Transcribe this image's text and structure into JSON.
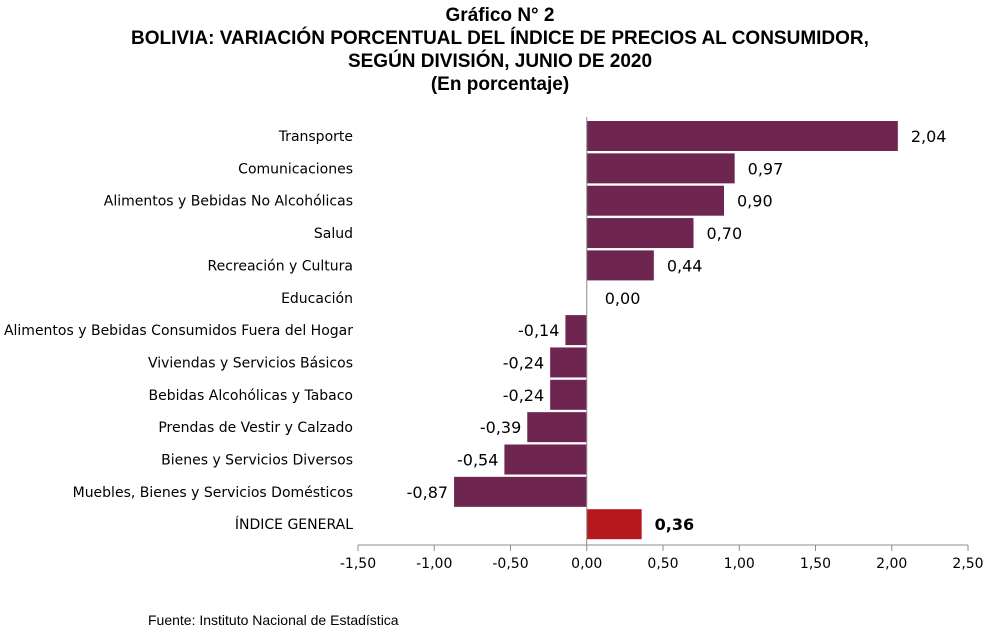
{
  "header": {
    "line1": "Gráfico N° 2",
    "line2": "BOLIVIA: VARIACIÓN PORCENTUAL DEL ÍNDICE DE PRECIOS AL CONSUMIDOR,",
    "line3": "SEGÚN DIVISIÓN, JUNIO DE 2020",
    "line4": "(En porcentaje)"
  },
  "source": "Fuente: Instituto Nacional de Estadística",
  "chart_data": {
    "type": "bar",
    "orientation": "horizontal",
    "categories": [
      "Transporte",
      "Comunicaciones",
      "Alimentos y Bebidas No Alcohólicas",
      "Salud",
      "Recreación y Cultura",
      "Educación",
      "Alimentos y Bebidas Consumidos Fuera del Hogar",
      "Viviendas y Servicios Básicos",
      "Bebidas Alcohólicas y Tabaco",
      "Prendas de Vestir y Calzado",
      "Bienes y Servicios Diversos",
      "Muebles, Bienes  y Servicios Domésticos",
      "ÍNDICE GENERAL"
    ],
    "values": [
      2.04,
      0.97,
      0.9,
      0.7,
      0.44,
      0.0,
      -0.14,
      -0.24,
      -0.24,
      -0.39,
      -0.54,
      -0.87,
      0.36
    ],
    "value_labels": [
      "2,04",
      "0,97",
      "0,90",
      "0,70",
      "0,44",
      "0,00",
      "-0,14",
      "-0,24",
      "-0,24",
      "-0,39",
      "-0,54",
      "-0,87",
      "0,36"
    ],
    "highlight_category": "ÍNDICE GENERAL",
    "xlim": [
      -1.5,
      2.5
    ],
    "xticks": [
      -1.5,
      -1.0,
      -0.5,
      0.0,
      0.5,
      1.0,
      1.5,
      2.0,
      2.5
    ],
    "xtick_labels": [
      "-1,50",
      "-1,00",
      "-0,50",
      "0,00",
      "0,50",
      "1,00",
      "1,50",
      "2,00",
      "2,50"
    ],
    "grid": false,
    "colors": {
      "bar": "#6e2651",
      "highlight": "#b5191b"
    }
  }
}
